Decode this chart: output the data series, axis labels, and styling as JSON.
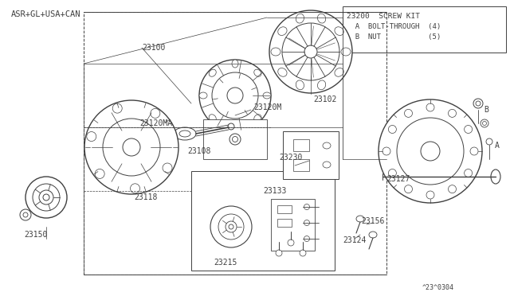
{
  "bg_color": "#ffffff",
  "line_color": "#404040",
  "label_color": "#404040",
  "header": "ASR+GL+USA+CAN",
  "footer": "^23^0304",
  "info_title": "23200  SCREW KIT",
  "info_line1": "  A  BOLT-THROUGH  (4)",
  "info_line2": "  B  NUT           (5)",
  "font_size": 7,
  "font_size_header": 7.5
}
